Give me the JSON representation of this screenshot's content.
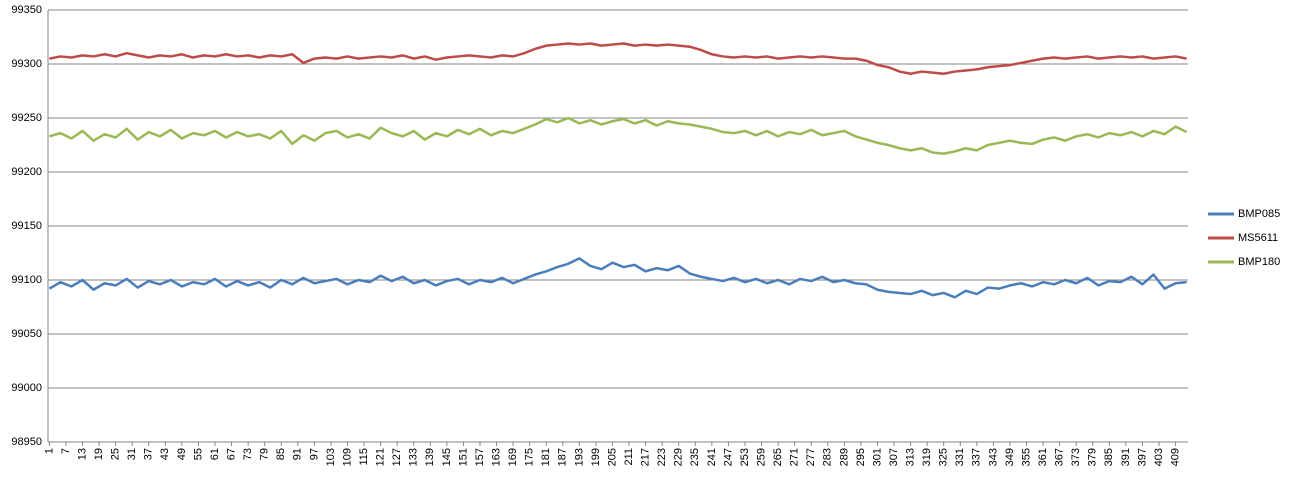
{
  "chart_data": {
    "type": "line",
    "x": [
      1,
      5,
      9,
      13,
      17,
      21,
      25,
      29,
      33,
      37,
      41,
      45,
      49,
      53,
      57,
      61,
      65,
      69,
      73,
      77,
      81,
      85,
      89,
      93,
      97,
      101,
      105,
      109,
      113,
      117,
      121,
      125,
      129,
      133,
      137,
      141,
      145,
      149,
      153,
      157,
      161,
      165,
      169,
      173,
      177,
      181,
      185,
      189,
      193,
      197,
      201,
      205,
      209,
      213,
      217,
      221,
      225,
      229,
      233,
      237,
      241,
      245,
      249,
      253,
      257,
      261,
      265,
      269,
      273,
      277,
      281,
      285,
      289,
      293,
      297,
      301,
      305,
      309,
      313,
      317,
      321,
      325,
      329,
      333,
      337,
      341,
      345,
      349,
      353,
      357,
      361,
      365,
      369,
      373,
      377,
      381,
      385,
      389,
      393,
      397,
      401,
      405,
      409,
      413
    ],
    "series": [
      {
        "name": "BMP085",
        "color": "#4a7ebb",
        "values": [
          99092,
          99098,
          99094,
          99100,
          99091,
          99097,
          99095,
          99101,
          99093,
          99099,
          99096,
          99100,
          99094,
          99098,
          99096,
          99101,
          99094,
          99099,
          99095,
          99098,
          99093,
          99100,
          99096,
          99102,
          99097,
          99099,
          99101,
          99096,
          99100,
          99098,
          99104,
          99099,
          99103,
          99097,
          99100,
          99095,
          99099,
          99101,
          99096,
          99100,
          99098,
          99102,
          99097,
          99101,
          99105,
          99108,
          99112,
          99115,
          99120,
          99113,
          99110,
          99116,
          99112,
          99114,
          99108,
          99111,
          99109,
          99113,
          99106,
          99103,
          99101,
          99099,
          99102,
          99098,
          99101,
          99097,
          99100,
          99096,
          99101,
          99099,
          99103,
          99098,
          99100,
          99097,
          99096,
          99091,
          99089,
          99088,
          99087,
          99090,
          99086,
          99088,
          99084,
          99090,
          99087,
          99093,
          99092,
          99095,
          99097,
          99094,
          99098,
          99096,
          99100,
          99097,
          99102,
          99095,
          99099,
          99098,
          99103,
          99096,
          99105,
          99092,
          99097,
          99098
        ]
      },
      {
        "name": "MS5611",
        "color": "#be4b48",
        "values": [
          99305,
          99307,
          99306,
          99308,
          99307,
          99309,
          99307,
          99310,
          99308,
          99306,
          99308,
          99307,
          99309,
          99306,
          99308,
          99307,
          99309,
          99307,
          99308,
          99306,
          99308,
          99307,
          99309,
          99301,
          99305,
          99306,
          99305,
          99307,
          99305,
          99306,
          99307,
          99306,
          99308,
          99305,
          99307,
          99304,
          99306,
          99307,
          99308,
          99307,
          99306,
          99308,
          99307,
          99310,
          99314,
          99317,
          99318,
          99319,
          99318,
          99319,
          99317,
          99318,
          99319,
          99317,
          99318,
          99317,
          99318,
          99317,
          99316,
          99313,
          99309,
          99307,
          99306,
          99307,
          99306,
          99307,
          99305,
          99306,
          99307,
          99306,
          99307,
          99306,
          99305,
          99305,
          99303,
          99299,
          99297,
          99293,
          99291,
          99293,
          99292,
          99291,
          99293,
          99294,
          99295,
          99297,
          99298,
          99299,
          99301,
          99303,
          99305,
          99306,
          99305,
          99306,
          99307,
          99305,
          99306,
          99307,
          99306,
          99307,
          99305,
          99306,
          99307,
          99305
        ]
      },
      {
        "name": "BMP180",
        "color": "#98b954",
        "values": [
          99233,
          99236,
          99231,
          99238,
          99229,
          99235,
          99232,
          99240,
          99230,
          99237,
          99233,
          99239,
          99231,
          99236,
          99234,
          99238,
          99232,
          99237,
          99233,
          99235,
          99231,
          99238,
          99226,
          99234,
          99229,
          99236,
          99238,
          99232,
          99235,
          99231,
          99241,
          99236,
          99233,
          99238,
          99230,
          99236,
          99233,
          99239,
          99235,
          99240,
          99234,
          99238,
          99236,
          99240,
          99244,
          99249,
          99246,
          99250,
          99245,
          99248,
          99244,
          99247,
          99249,
          99245,
          99248,
          99243,
          99247,
          99245,
          99244,
          99242,
          99240,
          99237,
          99236,
          99238,
          99234,
          99238,
          99233,
          99237,
          99235,
          99239,
          99234,
          99236,
          99238,
          99233,
          99230,
          99227,
          99225,
          99222,
          99220,
          99222,
          99218,
          99217,
          99219,
          99222,
          99220,
          99225,
          99227,
          99229,
          99227,
          99226,
          99230,
          99232,
          99229,
          99233,
          99235,
          99232,
          99236,
          99234,
          99237,
          99233,
          99238,
          99235,
          99242,
          99237
        ]
      }
    ],
    "xlim": [
      0.5,
      413.5
    ],
    "xticks": [
      1,
      7,
      13,
      19,
      25,
      31,
      37,
      43,
      49,
      55,
      61,
      67,
      73,
      79,
      85,
      91,
      97,
      103,
      109,
      115,
      121,
      127,
      133,
      139,
      145,
      151,
      157,
      163,
      169,
      175,
      181,
      187,
      193,
      199,
      205,
      211,
      217,
      223,
      229,
      235,
      241,
      247,
      253,
      259,
      265,
      271,
      277,
      283,
      289,
      295,
      301,
      307,
      313,
      319,
      325,
      331,
      337,
      343,
      349,
      355,
      361,
      367,
      373,
      379,
      385,
      391,
      397,
      403,
      409
    ],
    "ylim": [
      98950,
      99350
    ],
    "yticks": [
      98950,
      99000,
      99050,
      99100,
      99150,
      99200,
      99250,
      99300,
      99350
    ],
    "grid": true,
    "legend": "right"
  }
}
